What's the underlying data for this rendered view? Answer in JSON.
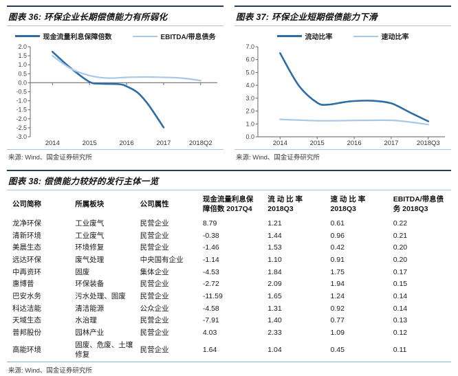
{
  "figures": [
    {
      "title": "图表 36: 环保企业长期偿债能力有所弱化",
      "legend": [
        {
          "label": "现金流量利息保障倍数",
          "color": "#2e6ca6"
        },
        {
          "label": "EBITDA/带息债务",
          "color": "#a9c7e6"
        }
      ],
      "source": "来源: Wind、国金证券研究所"
    },
    {
      "title": "图表 37: 环保企业短期偿债能力下滑",
      "legend": [
        {
          "label": "流动比率",
          "color": "#2e6ca6"
        },
        {
          "label": "速动比率",
          "color": "#a9c7e6"
        }
      ],
      "source": "来源: Wind、国金证券研究所"
    }
  ],
  "chart_data": [
    {
      "type": "line",
      "title": "图表 36: 环保企业长期偿债能力有所弱化",
      "x_categories": [
        "2014",
        "2015",
        "2016",
        "2017",
        "2018Q2"
      ],
      "ylim": [
        -3.0,
        2.0
      ],
      "ytick_step": 0.5,
      "grid": false,
      "legend_position": "top",
      "series": [
        {
          "name": "现金流量利息保障倍数",
          "color": "#2e6ca6",
          "stroke_width": 2.6,
          "points": [
            [
              0,
              1.72
            ],
            [
              0.5,
              0.8
            ],
            [
              1,
              0.05
            ],
            [
              1.3,
              -0.05
            ],
            [
              1.8,
              -0.08
            ],
            [
              2,
              -0.2
            ],
            [
              2.3,
              -0.55
            ],
            [
              2.6,
              -1.25
            ],
            [
              3,
              -2.48
            ]
          ],
          "values_at_ticks": {
            "2014": 1.72,
            "2015": 0.05,
            "2016": -0.2,
            "2017": -2.48
          }
        },
        {
          "name": "EBITDA/带息债务",
          "color": "#a9c7e6",
          "stroke_width": 2.2,
          "points": [
            [
              0,
              1.5
            ],
            [
              0.5,
              0.78
            ],
            [
              1,
              0.4
            ],
            [
              1.5,
              0.26
            ],
            [
              2,
              0.3
            ],
            [
              2.5,
              0.32
            ],
            [
              3,
              0.3
            ],
            [
              3.5,
              0.26
            ],
            [
              4,
              0.12
            ]
          ],
          "values_at_ticks": {
            "2014": 1.5,
            "2015": 0.4,
            "2016": 0.3,
            "2017": 0.3,
            "2018Q2": 0.12
          }
        }
      ]
    },
    {
      "type": "line",
      "title": "图表 37: 环保企业短期偿债能力下滑",
      "x_categories": [
        "2014",
        "2015",
        "2016",
        "2017",
        "2018Q3"
      ],
      "ylim": [
        0.0,
        7.0
      ],
      "ytick_step": 1.0,
      "grid": false,
      "legend_position": "top",
      "series": [
        {
          "name": "流动比率",
          "color": "#2e6ca6",
          "stroke_width": 2.6,
          "points": [
            [
              0,
              6.5
            ],
            [
              0.5,
              4.0
            ],
            [
              1,
              2.65
            ],
            [
              1.3,
              2.5
            ],
            [
              1.7,
              2.68
            ],
            [
              2,
              2.78
            ],
            [
              2.5,
              2.8
            ],
            [
              3,
              2.6
            ],
            [
              3.5,
              1.9
            ],
            [
              4,
              1.2
            ]
          ],
          "values_at_ticks": {
            "2014": 6.5,
            "2015": 2.65,
            "2016": 2.78,
            "2017": 2.6,
            "2018Q3": 1.2
          }
        },
        {
          "name": "速动比率",
          "color": "#a9c7e6",
          "stroke_width": 2.2,
          "points": [
            [
              0,
              1.35
            ],
            [
              0.5,
              1.3
            ],
            [
              1,
              1.25
            ],
            [
              1.5,
              1.25
            ],
            [
              2,
              1.27
            ],
            [
              2.5,
              1.28
            ],
            [
              3,
              1.28
            ],
            [
              3.5,
              1.15
            ],
            [
              4,
              0.95
            ]
          ],
          "values_at_ticks": {
            "2014": 1.35,
            "2015": 1.25,
            "2016": 1.27,
            "2017": 1.28,
            "2018Q3": 0.95
          }
        }
      ]
    },
    {
      "type": "table",
      "title": "图表 38: 偿债能力较好的发行主体一览",
      "columns": [
        "公司简称",
        "所属板块",
        "公司属性",
        "现金流量利息保障倍数 2017Q4",
        "流动比率 2018Q3",
        "速动比率 2018Q3",
        "EBITDA/带息债务 2018Q3"
      ],
      "rows": [
        [
          "龙净环保",
          "工业废气",
          "民营企业",
          8.79,
          1.21,
          0.61,
          0.22
        ],
        [
          "清新环境",
          "工业废气",
          "民营企业",
          -0.38,
          1.44,
          0.96,
          0.21
        ],
        [
          "美晨生态",
          "环境修复",
          "民营企业",
          -1.46,
          1.53,
          0.42,
          0.2
        ],
        [
          "远达环保",
          "废气处理",
          "中央国有企业",
          -1.14,
          1.1,
          0.91,
          0.2
        ],
        [
          "中再资环",
          "固废",
          "集体企业",
          -4.53,
          1.84,
          1.75,
          0.17
        ],
        [
          "惠博普",
          "环保装备",
          "民营企业",
          -2.72,
          2.09,
          1.94,
          0.15
        ],
        [
          "巴安水务",
          "污水处理、固废",
          "民营企业",
          -11.59,
          1.65,
          1.24,
          0.14
        ],
        [
          "科达洁能",
          "清洁能源",
          "公众企业",
          -4.58,
          1.31,
          0.92,
          0.14
        ],
        [
          "天域生态",
          "水治理",
          "民营企业",
          -7.91,
          1.4,
          0.77,
          0.13
        ],
        [
          "普邦股份",
          "园林产业",
          "民营企业",
          4.03,
          2.33,
          1.09,
          0.12
        ],
        [
          "高能环境",
          "固废、危废、土壤修复",
          "民营企业",
          1.64,
          1.04,
          0.45,
          0.11
        ]
      ]
    }
  ],
  "table": {
    "title": "图表 38: 偿债能力较好的发行主体一览",
    "headers": [
      {
        "line1": "公司简称",
        "line2": ""
      },
      {
        "line1": "所属板块",
        "line2": ""
      },
      {
        "line1": "公司属性",
        "line2": ""
      },
      {
        "line1": "现金流量利息保",
        "line2": "障倍数 2017Q4"
      },
      {
        "line1": "流 动 比 率",
        "line2": "2018Q3"
      },
      {
        "line1": "速 动 比 率",
        "line2": "2018Q3"
      },
      {
        "line1": "EBITDA/带息债",
        "line2": "务 2018Q3"
      }
    ],
    "rows": [
      [
        "龙净环保",
        "工业废气",
        "民营企业",
        "8.79",
        "1.21",
        "0.61",
        "0.22"
      ],
      [
        "清新环境",
        "工业废气",
        "民营企业",
        "-0.38",
        "1.44",
        "0.96",
        "0.21"
      ],
      [
        "美晨生态",
        "环境修复",
        "民营企业",
        "-1.46",
        "1.53",
        "0.42",
        "0.20"
      ],
      [
        "远达环保",
        "废气处理",
        "中央国有企业",
        "-1.14",
        "1.10",
        "0.91",
        "0.20"
      ],
      [
        "中再资环",
        "固废",
        "集体企业",
        "-4.53",
        "1.84",
        "1.75",
        "0.17"
      ],
      [
        "惠博普",
        "环保装备",
        "民营企业",
        "-2.72",
        "2.09",
        "1.94",
        "0.15"
      ],
      [
        "巴安水务",
        "污水处理、固废",
        "民营企业",
        "-11.59",
        "1.65",
        "1.24",
        "0.14"
      ],
      [
        "科达洁能",
        "清洁能源",
        "公众企业",
        "-4.58",
        "1.31",
        "0.92",
        "0.14"
      ],
      [
        "天域生态",
        "水治理",
        "民营企业",
        "-7.91",
        "1.40",
        "0.77",
        "0.13"
      ],
      [
        "普邦股份",
        "园林产业",
        "民营企业",
        "4.03",
        "2.33",
        "1.09",
        "0.12"
      ],
      [
        "高能环境",
        "固废、危废、土壤修复",
        "民营企业",
        "1.64",
        "1.04",
        "0.45",
        "0.11"
      ]
    ],
    "source": "来源: Wind、国金证券研究所"
  },
  "colors": {
    "dark_series": "#2e6ca6",
    "light_series": "#a9c7e6",
    "title_rule_top": "#243a5e",
    "title_rule_bottom": "#a9c6e8",
    "axis": "#7f7f7f",
    "table_bottom_rule": "#89b3dc"
  }
}
